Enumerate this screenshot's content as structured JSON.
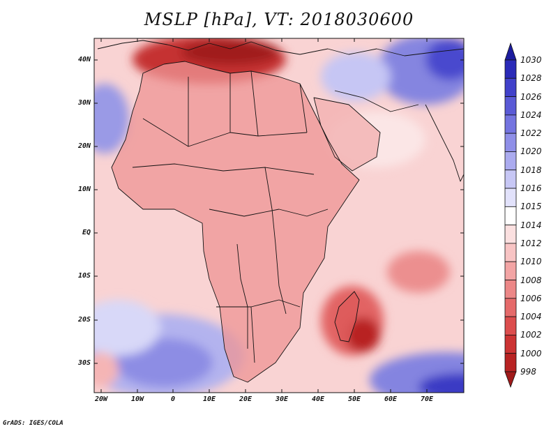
{
  "title": "MSLP [hPa], VT: 2018030600",
  "credit": "GrADS: IGES/COLA",
  "map": {
    "lat_labels": [
      "40N",
      "30N",
      "20N",
      "10N",
      "EQ",
      "10S",
      "20S",
      "30S"
    ],
    "lon_labels": [
      "20W",
      "10W",
      "0",
      "10E",
      "20E",
      "30E",
      "40E",
      "50E",
      "60E",
      "70E"
    ]
  },
  "colorbar": {
    "levels": [
      "998",
      "1000",
      "1002",
      "1004",
      "1006",
      "1008",
      "1010",
      "1012",
      "1014",
      "1015",
      "1016",
      "1018",
      "1020",
      "1022",
      "1024",
      "1026",
      "1028",
      "1030"
    ],
    "colors": [
      "#a01a1a",
      "#b82323",
      "#cc3333",
      "#dc4d4d",
      "#e56a6a",
      "#ec8787",
      "#f3a5a5",
      "#f8c4c4",
      "#fbe0e0",
      "#ffffff",
      "#e2e2fb",
      "#c7c7f5",
      "#ababef",
      "#8f8fe8",
      "#7474e0",
      "#5a5ad6",
      "#4141ca",
      "#2a2ab8",
      "#1c1c9e"
    ]
  },
  "palette": {
    "ocean": "#f9d3d3",
    "land": "#ee9494",
    "border": "#111111"
  }
}
